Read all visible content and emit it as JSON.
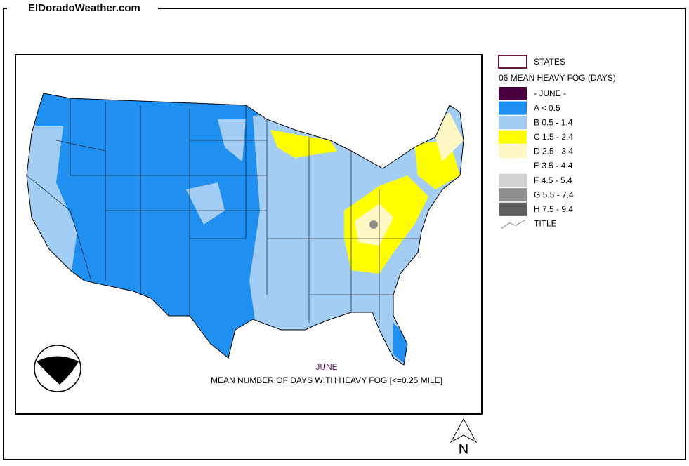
{
  "site": "ElDoradoWeather.com",
  "legend": {
    "states": "STATES",
    "title": "06 MEAN HEAVY FOG (DAYS)",
    "items": [
      {
        "label": "- JUNE -",
        "color": "#4a0040"
      },
      {
        "label": "A < 0.5",
        "color": "#2090f0"
      },
      {
        "label": "B 0.5 - 1.4",
        "color": "#a4cdf6"
      },
      {
        "label": "C 1.5 - 2.4",
        "color": "#ffff00"
      },
      {
        "label": "D 2.5 - 3.4",
        "color": "#fff8c4"
      },
      {
        "label": "E 3.5 - 4.4",
        "color": "#ffffff"
      },
      {
        "label": "F 4.5 - 5.4",
        "color": "#d2d2d2"
      },
      {
        "label": "G 5.5 - 7.4",
        "color": "#8e8e8e"
      },
      {
        "label": "H 7.5 - 9.4",
        "color": "#5e5e5e"
      }
    ],
    "line": "TITLE"
  },
  "map": {
    "month": "JUNE",
    "caption": "MEAN NUMBER OF DAYS WITH HEAVY FOG [<=0.25 MILE]",
    "north": "N"
  }
}
